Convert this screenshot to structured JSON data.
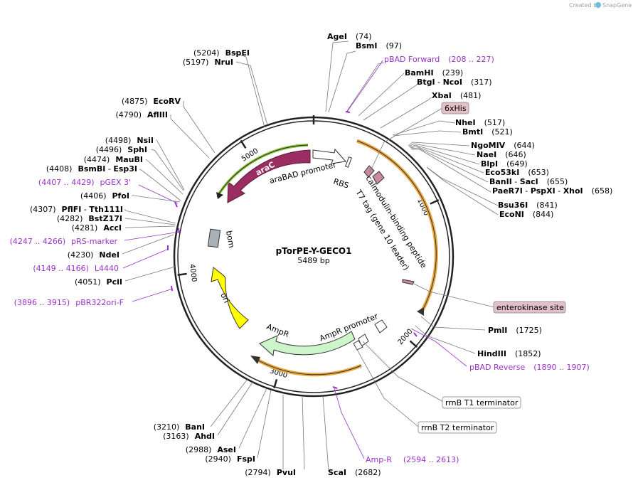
{
  "credit": {
    "text": "Created by",
    "brand": "SnapGene"
  },
  "plasmid": {
    "name": "pTorPE-Y-GECO1",
    "length_label": "5489 bp",
    "length": 5489
  },
  "ticks": [
    {
      "pos": 1000,
      "label": "1000"
    },
    {
      "pos": 2000,
      "label": "2000"
    },
    {
      "pos": 3000,
      "label": "3000"
    },
    {
      "pos": 4000,
      "label": "4000"
    },
    {
      "pos": 5000,
      "label": "5000"
    }
  ],
  "enzymes_right": [
    {
      "name": "AgeI",
      "pos": "(74)",
      "site": 74
    },
    {
      "name": "BsmI",
      "pos": "(97)",
      "site": 97
    },
    {
      "name": "BamHI",
      "pos": "(239)",
      "site": 239
    },
    {
      "name": "BtgI",
      "sep": " - ",
      "name2": "NcoI",
      "pos": "(317)",
      "site": 317
    },
    {
      "name": "XbaI",
      "pos": "(481)",
      "site": 481
    },
    {
      "name": "NheI",
      "pos": "(517)",
      "site": 517
    },
    {
      "name": "BmtI",
      "pos": "(521)",
      "site": 521
    },
    {
      "name": "NgoMIV",
      "pos": "(644)",
      "site": 644
    },
    {
      "name": "NaeI",
      "pos": "(646)",
      "site": 646
    },
    {
      "name": "BlpI",
      "pos": "(649)",
      "site": 649
    },
    {
      "name": "Eco53kI",
      "pos": "(653)",
      "site": 653
    },
    {
      "name": "BanII",
      "sep": " - ",
      "name2": "SacI",
      "pos": "(655)",
      "site": 655
    },
    {
      "name": "PaeR7I",
      "sep": " - ",
      "name2": "PspXI",
      "sep2": " - ",
      "name3": "XhoI",
      "pos": "(658)",
      "site": 658
    },
    {
      "name": "Bsu36I",
      "pos": "(841)",
      "site": 841
    },
    {
      "name": "EcoNI",
      "pos": "(844)",
      "site": 844
    },
    {
      "name": "PmlI",
      "pos": "(1725)",
      "site": 1725
    },
    {
      "name": "HindIII",
      "pos": "(1852)",
      "site": 1852
    }
  ],
  "enzymes_left": [
    {
      "name": "BspEI",
      "pos": "(5204)",
      "site": 5204
    },
    {
      "name": "NruI",
      "pos": "(5197)",
      "site": 5197
    },
    {
      "name": "EcoRV",
      "pos": "(4875)",
      "site": 4875
    },
    {
      "name": "AflIII",
      "pos": "(4790)",
      "site": 4790
    },
    {
      "name": "NsiI",
      "pos": "(4498)",
      "site": 4498
    },
    {
      "name": "SphI",
      "pos": "(4496)",
      "site": 4496
    },
    {
      "name": "MauBI",
      "pos": "(4474)",
      "site": 4474
    },
    {
      "name": "BsmBI",
      "sep": " - ",
      "name2": "Esp3I",
      "pos": "(4408)",
      "site": 4408
    },
    {
      "name": "PfoI",
      "pos": "(4406)",
      "site": 4406
    },
    {
      "name": "PflFI",
      "sep": " - ",
      "name2": "Tth111I",
      "pos": "(4307)",
      "site": 4307
    },
    {
      "name": "BstZ17I",
      "pos": "(4282)",
      "site": 4282
    },
    {
      "name": "AccI",
      "pos": "(4281)",
      "site": 4281
    },
    {
      "name": "NdeI",
      "pos": "(4230)",
      "site": 4230
    },
    {
      "name": "PciI",
      "pos": "(4051)",
      "site": 4051
    }
  ],
  "enzymes_bottom": [
    {
      "name": "BanI",
      "pos": "(3210)",
      "site": 3210
    },
    {
      "name": "AhdI",
      "pos": "(3163)",
      "site": 3163
    },
    {
      "name": "AseI",
      "pos": "(2988)",
      "site": 2988
    },
    {
      "name": "FspI",
      "pos": "(2940)",
      "site": 2940
    },
    {
      "name": "PvuI",
      "pos": "(2794)",
      "site": 2794
    },
    {
      "name": "ScaI",
      "pos": "(2682)",
      "site": 2682
    }
  ],
  "primers": [
    {
      "name": "pBAD Forward",
      "range": "(208 .. 227)",
      "start": 208
    },
    {
      "name": "pGEX 3'",
      "range": "(4407 .. 4429)",
      "start": 4407
    },
    {
      "name": "pRS-marker",
      "range": "(4247 .. 4266)",
      "start": 4247
    },
    {
      "name": "L4440",
      "range": "(4149 .. 4166)",
      "start": 4149
    },
    {
      "name": "pBR322ori-F",
      "range": "(3896 .. 3915)",
      "start": 3896
    },
    {
      "name": "pBAD Reverse",
      "range": "(1890 .. 1907)",
      "start": 1890
    },
    {
      "name": "Amp-R",
      "range": "(2594 .. 2613)",
      "start": 2594
    }
  ],
  "boxed_features": [
    {
      "label": "6xHis",
      "color": "#e3c0c8"
    },
    {
      "label": "enterokinase site",
      "color": "#e3c0c8"
    },
    {
      "label": "rrnB T1 terminator",
      "color": "#ffffff"
    },
    {
      "label": "rrnB T2 terminator",
      "color": "#ffffff"
    }
  ],
  "features": [
    {
      "label": "araC",
      "color": "#9a2e63"
    },
    {
      "label": "araBAD promoter",
      "color": "#ffffff"
    },
    {
      "label": "RBS",
      "color": "#ffffff"
    },
    {
      "label": "T7 tag (gene 10 leader)",
      "color": "#c98aa0"
    },
    {
      "label": "calmodulin-binding peptide",
      "color": "#c98aa0"
    },
    {
      "label": "bom",
      "color": "#a8b0b8"
    },
    {
      "label": "ori",
      "color": "#ffff00"
    },
    {
      "label": "AmpR",
      "color": "#ccf5cc"
    },
    {
      "label": "AmpR promoter",
      "color": "#ffffff"
    }
  ],
  "colors": {
    "backbone": "#222222",
    "primer": "#9b30c8",
    "orf_orange": "#e8a840",
    "orf_green": "#8ec63f"
  }
}
